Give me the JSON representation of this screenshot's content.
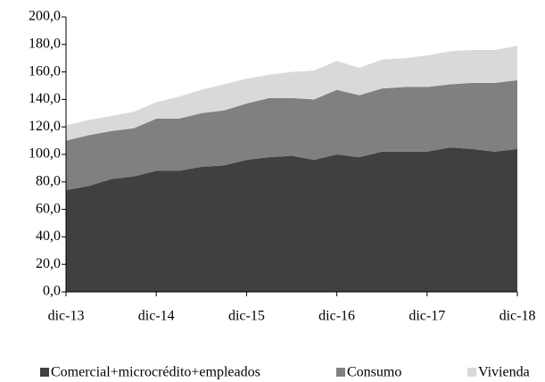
{
  "chart_data": {
    "type": "stacked-area",
    "categories": [
      "dic-13",
      null,
      null,
      null,
      "dic-14",
      null,
      null,
      null,
      "dic-15",
      null,
      null,
      null,
      "dic-16",
      null,
      null,
      null,
      "dic-17",
      null,
      null,
      null,
      "dic-18"
    ],
    "series": [
      {
        "name": "Comercial+microcrédito+empleados",
        "color": "#404040",
        "values": [
          74,
          77,
          82,
          84,
          88,
          88,
          91,
          92,
          96,
          98,
          99,
          96,
          100,
          98,
          102,
          102,
          102,
          105,
          104,
          102,
          104
        ]
      },
      {
        "name": "Consumo",
        "color": "#808080",
        "values": [
          36,
          37,
          35,
          35,
          38,
          38,
          39,
          40,
          41,
          43,
          42,
          44,
          47,
          45,
          46,
          47,
          47,
          46,
          48,
          50,
          50
        ]
      },
      {
        "name": "Vivienda",
        "color": "#d9d9d9",
        "values": [
          11,
          11,
          11,
          12,
          12,
          16,
          17,
          19,
          18,
          17,
          19,
          21,
          21,
          20,
          21,
          21,
          23,
          24,
          24,
          24,
          25
        ]
      }
    ],
    "ylim": [
      0,
      200
    ],
    "yticks": [
      {
        "value": 0,
        "label": "0,0"
      },
      {
        "value": 20,
        "label": "20,0"
      },
      {
        "value": 40,
        "label": "40,0"
      },
      {
        "value": 60,
        "label": "60,0"
      },
      {
        "value": 80,
        "label": "80,0"
      },
      {
        "value": 100,
        "label": "100,0"
      },
      {
        "value": 120,
        "label": "120,0"
      },
      {
        "value": 140,
        "label": "140,0"
      },
      {
        "value": 160,
        "label": "160,0"
      },
      {
        "value": 180,
        "label": "180,0"
      },
      {
        "value": 200,
        "label": "200,0"
      }
    ],
    "legend": "bottom"
  }
}
